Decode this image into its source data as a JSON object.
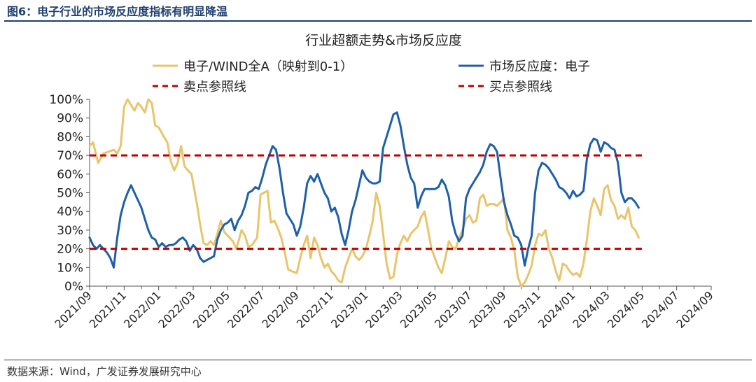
{
  "figure": {
    "title": "图6：电子行业的市场反应度指标有明显降温",
    "source": "数据来源：Wind，广发证券发展研究中心"
  },
  "chart_data": {
    "type": "line",
    "title": "行业超额走势&市场反应度",
    "ylim": [
      0,
      100
    ],
    "yticks": [
      "0%",
      "10%",
      "20%",
      "30%",
      "40%",
      "50%",
      "60%",
      "70%",
      "80%",
      "90%",
      "100%"
    ],
    "xticks": [
      "2021/09",
      "2021/11",
      "2022/01",
      "2022/03",
      "2022/05",
      "2022/07",
      "2022/09",
      "2022/11",
      "2023/01",
      "2023/03",
      "2023/05",
      "2023/07",
      "2023/09",
      "2023/11",
      "2024/01",
      "2024/03",
      "2024/05",
      "2024/07",
      "2024/09"
    ],
    "grid": false,
    "legend_position": "top",
    "series": [
      {
        "name": "电子/WIND全A（映射到0-1）",
        "color": "#e9c46a",
        "points": [
          [
            0.0,
            75
          ],
          [
            0.2,
            77
          ],
          [
            0.5,
            66
          ],
          [
            0.8,
            71
          ],
          [
            1.1,
            72
          ],
          [
            1.4,
            73
          ],
          [
            1.6,
            71
          ],
          [
            1.8,
            75
          ],
          [
            2.0,
            96
          ],
          [
            2.2,
            100
          ],
          [
            2.4,
            97
          ],
          [
            2.6,
            94
          ],
          [
            2.8,
            98
          ],
          [
            3.0,
            96
          ],
          [
            3.2,
            93
          ],
          [
            3.4,
            100
          ],
          [
            3.6,
            98
          ],
          [
            3.8,
            86
          ],
          [
            4.0,
            85
          ],
          [
            4.3,
            80
          ],
          [
            4.5,
            77
          ],
          [
            4.7,
            67
          ],
          [
            4.9,
            62
          ],
          [
            5.1,
            66
          ],
          [
            5.3,
            75
          ],
          [
            5.5,
            64
          ],
          [
            5.7,
            62
          ],
          [
            5.9,
            60
          ],
          [
            6.2,
            45
          ],
          [
            6.4,
            33
          ],
          [
            6.6,
            23
          ],
          [
            6.8,
            22
          ],
          [
            7.0,
            24
          ],
          [
            7.2,
            22
          ],
          [
            7.4,
            28
          ],
          [
            7.6,
            35
          ],
          [
            7.8,
            29
          ],
          [
            8.0,
            27
          ],
          [
            8.3,
            24
          ],
          [
            8.5,
            20
          ],
          [
            8.8,
            30
          ],
          [
            9.0,
            27
          ],
          [
            9.2,
            21
          ],
          [
            9.4,
            22
          ],
          [
            9.7,
            26
          ],
          [
            9.9,
            49
          ],
          [
            10.1,
            50
          ],
          [
            10.3,
            51
          ],
          [
            10.5,
            34
          ],
          [
            10.7,
            35
          ],
          [
            10.9,
            31
          ],
          [
            11.1,
            26
          ],
          [
            11.3,
            18
          ],
          [
            11.5,
            9
          ],
          [
            11.7,
            8
          ],
          [
            12.0,
            7
          ],
          [
            12.2,
            15
          ],
          [
            12.4,
            22
          ],
          [
            12.6,
            27
          ],
          [
            12.8,
            15
          ],
          [
            13.0,
            26
          ],
          [
            13.2,
            22
          ],
          [
            13.4,
            15
          ],
          [
            13.6,
            10
          ],
          [
            13.8,
            12
          ],
          [
            14.0,
            8
          ],
          [
            14.2,
            6
          ],
          [
            14.4,
            3
          ],
          [
            14.6,
            2
          ],
          [
            14.8,
            10
          ],
          [
            15.0,
            15
          ],
          [
            15.2,
            20
          ],
          [
            15.4,
            16
          ],
          [
            15.6,
            14
          ],
          [
            15.8,
            16
          ],
          [
            16.0,
            20
          ],
          [
            16.2,
            27
          ],
          [
            16.4,
            35
          ],
          [
            16.6,
            50
          ],
          [
            16.8,
            43
          ],
          [
            17.0,
            28
          ],
          [
            17.2,
            12
          ],
          [
            17.4,
            4
          ],
          [
            17.6,
            5
          ],
          [
            17.8,
            17
          ],
          [
            18.0,
            23
          ],
          [
            18.2,
            27
          ],
          [
            18.4,
            24
          ],
          [
            18.6,
            28
          ],
          [
            18.8,
            30
          ],
          [
            19.0,
            32
          ],
          [
            19.2,
            37
          ],
          [
            19.4,
            40
          ],
          [
            19.6,
            30
          ],
          [
            19.8,
            20
          ],
          [
            20.0,
            15
          ],
          [
            20.2,
            10
          ],
          [
            20.4,
            7
          ],
          [
            20.6,
            15
          ],
          [
            20.8,
            24
          ],
          [
            21.0,
            21
          ],
          [
            21.2,
            20
          ],
          [
            21.4,
            26
          ],
          [
            21.6,
            30
          ],
          [
            21.8,
            36
          ],
          [
            22.0,
            38
          ],
          [
            22.2,
            34
          ],
          [
            22.4,
            35
          ],
          [
            22.6,
            47
          ],
          [
            22.8,
            49
          ],
          [
            23.0,
            43
          ],
          [
            23.2,
            44
          ],
          [
            23.4,
            44
          ],
          [
            23.6,
            43
          ],
          [
            23.8,
            45
          ],
          [
            24.0,
            47
          ],
          [
            24.2,
            30
          ],
          [
            24.4,
            26
          ],
          [
            24.6,
            19
          ],
          [
            24.8,
            5
          ],
          [
            25.0,
            0
          ],
          [
            25.2,
            2
          ],
          [
            25.4,
            6
          ],
          [
            25.6,
            11
          ],
          [
            25.8,
            22
          ],
          [
            26.0,
            28
          ],
          [
            26.2,
            27
          ],
          [
            26.4,
            30
          ],
          [
            26.6,
            20
          ],
          [
            26.8,
            15
          ],
          [
            27.0,
            8
          ],
          [
            27.2,
            3
          ],
          [
            27.4,
            12
          ],
          [
            27.6,
            11
          ],
          [
            27.8,
            8
          ],
          [
            28.0,
            6
          ],
          [
            28.2,
            7
          ],
          [
            28.4,
            5
          ],
          [
            28.6,
            12
          ],
          [
            28.8,
            25
          ],
          [
            29.0,
            40
          ],
          [
            29.2,
            47
          ],
          [
            29.4,
            43
          ],
          [
            29.6,
            38
          ],
          [
            29.8,
            52
          ],
          [
            30.0,
            54
          ],
          [
            30.2,
            46
          ],
          [
            30.4,
            43
          ],
          [
            30.6,
            36
          ],
          [
            30.8,
            38
          ],
          [
            31.0,
            36
          ],
          [
            31.2,
            42
          ],
          [
            31.4,
            32
          ],
          [
            31.6,
            30
          ],
          [
            31.8,
            26
          ]
        ]
      },
      {
        "name": "市场反应度：电子",
        "color": "#1f5fa8",
        "points": [
          [
            0.0,
            26
          ],
          [
            0.2,
            22
          ],
          [
            0.4,
            20
          ],
          [
            0.6,
            22
          ],
          [
            0.8,
            20
          ],
          [
            1.0,
            18
          ],
          [
            1.2,
            15
          ],
          [
            1.4,
            10
          ],
          [
            1.6,
            26
          ],
          [
            1.8,
            38
          ],
          [
            2.0,
            45
          ],
          [
            2.2,
            50
          ],
          [
            2.4,
            54
          ],
          [
            2.6,
            50
          ],
          [
            2.8,
            46
          ],
          [
            3.0,
            42
          ],
          [
            3.2,
            36
          ],
          [
            3.4,
            30
          ],
          [
            3.6,
            26
          ],
          [
            3.8,
            25
          ],
          [
            4.0,
            21
          ],
          [
            4.2,
            23
          ],
          [
            4.4,
            21
          ],
          [
            4.6,
            22
          ],
          [
            4.8,
            22
          ],
          [
            5.0,
            23
          ],
          [
            5.2,
            25
          ],
          [
            5.4,
            26
          ],
          [
            5.6,
            24
          ],
          [
            5.8,
            19
          ],
          [
            6.0,
            22
          ],
          [
            6.2,
            20
          ],
          [
            6.4,
            15
          ],
          [
            6.6,
            13
          ],
          [
            6.8,
            14
          ],
          [
            7.0,
            15
          ],
          [
            7.2,
            16
          ],
          [
            7.4,
            25
          ],
          [
            7.6,
            30
          ],
          [
            7.8,
            33
          ],
          [
            8.0,
            34
          ],
          [
            8.2,
            36
          ],
          [
            8.4,
            30
          ],
          [
            8.6,
            35
          ],
          [
            8.8,
            38
          ],
          [
            9.0,
            43
          ],
          [
            9.2,
            50
          ],
          [
            9.4,
            51
          ],
          [
            9.6,
            53
          ],
          [
            9.8,
            52
          ],
          [
            10.0,
            58
          ],
          [
            10.2,
            65
          ],
          [
            10.4,
            70
          ],
          [
            10.6,
            75
          ],
          [
            10.8,
            73
          ],
          [
            11.0,
            63
          ],
          [
            11.2,
            50
          ],
          [
            11.4,
            39
          ],
          [
            11.6,
            36
          ],
          [
            11.8,
            33
          ],
          [
            12.0,
            27
          ],
          [
            12.2,
            32
          ],
          [
            12.4,
            42
          ],
          [
            12.6,
            55
          ],
          [
            12.8,
            59
          ],
          [
            13.0,
            56
          ],
          [
            13.2,
            60
          ],
          [
            13.4,
            55
          ],
          [
            13.6,
            50
          ],
          [
            13.8,
            47
          ],
          [
            14.0,
            40
          ],
          [
            14.2,
            42
          ],
          [
            14.4,
            37
          ],
          [
            14.6,
            28
          ],
          [
            14.8,
            22
          ],
          [
            15.0,
            30
          ],
          [
            15.2,
            40
          ],
          [
            15.4,
            46
          ],
          [
            15.6,
            54
          ],
          [
            15.8,
            62
          ],
          [
            16.0,
            58
          ],
          [
            16.2,
            56
          ],
          [
            16.4,
            55
          ],
          [
            16.6,
            55
          ],
          [
            16.8,
            56
          ],
          [
            17.0,
            74
          ],
          [
            17.2,
            80
          ],
          [
            17.4,
            86
          ],
          [
            17.6,
            92
          ],
          [
            17.8,
            93
          ],
          [
            18.0,
            86
          ],
          [
            18.2,
            75
          ],
          [
            18.4,
            65
          ],
          [
            18.6,
            58
          ],
          [
            18.8,
            55
          ],
          [
            19.0,
            42
          ],
          [
            19.2,
            48
          ],
          [
            19.4,
            52
          ],
          [
            19.6,
            52
          ],
          [
            19.8,
            52
          ],
          [
            20.0,
            52
          ],
          [
            20.2,
            53
          ],
          [
            20.4,
            57
          ],
          [
            20.6,
            54
          ],
          [
            20.8,
            48
          ],
          [
            21.0,
            35
          ],
          [
            21.2,
            28
          ],
          [
            21.4,
            24
          ],
          [
            21.6,
            27
          ],
          [
            21.8,
            47
          ],
          [
            22.0,
            52
          ],
          [
            22.2,
            55
          ],
          [
            22.4,
            58
          ],
          [
            22.6,
            61
          ],
          [
            22.8,
            65
          ],
          [
            23.0,
            72
          ],
          [
            23.2,
            76
          ],
          [
            23.4,
            75
          ],
          [
            23.6,
            72
          ],
          [
            23.8,
            58
          ],
          [
            24.0,
            45
          ],
          [
            24.2,
            38
          ],
          [
            24.4,
            33
          ],
          [
            24.6,
            27
          ],
          [
            24.8,
            26
          ],
          [
            25.0,
            22
          ],
          [
            25.2,
            11
          ],
          [
            25.4,
            20
          ],
          [
            25.6,
            27
          ],
          [
            25.8,
            50
          ],
          [
            26.0,
            62
          ],
          [
            26.2,
            66
          ],
          [
            26.4,
            65
          ],
          [
            26.6,
            63
          ],
          [
            26.8,
            60
          ],
          [
            27.0,
            57
          ],
          [
            27.2,
            53
          ],
          [
            27.4,
            52
          ],
          [
            27.6,
            50
          ],
          [
            27.8,
            47
          ],
          [
            28.0,
            51
          ],
          [
            28.2,
            48
          ],
          [
            28.4,
            49
          ],
          [
            28.6,
            51
          ],
          [
            28.8,
            68
          ],
          [
            29.0,
            76
          ],
          [
            29.2,
            79
          ],
          [
            29.4,
            78
          ],
          [
            29.6,
            72
          ],
          [
            29.8,
            77
          ],
          [
            30.0,
            76
          ],
          [
            30.2,
            74
          ],
          [
            30.4,
            73
          ],
          [
            30.6,
            66
          ],
          [
            30.8,
            50
          ],
          [
            31.0,
            45
          ],
          [
            31.2,
            47
          ],
          [
            31.4,
            47
          ],
          [
            31.6,
            45
          ],
          [
            31.8,
            42
          ]
        ]
      },
      {
        "name": "卖点参照线",
        "color": "#c00000",
        "dashed": true,
        "points": [
          [
            0,
            70
          ],
          [
            32,
            70
          ]
        ]
      },
      {
        "name": "买点参照线",
        "color": "#c00000",
        "dashed": true,
        "points": [
          [
            0,
            20
          ],
          [
            32,
            20
          ]
        ]
      }
    ]
  }
}
